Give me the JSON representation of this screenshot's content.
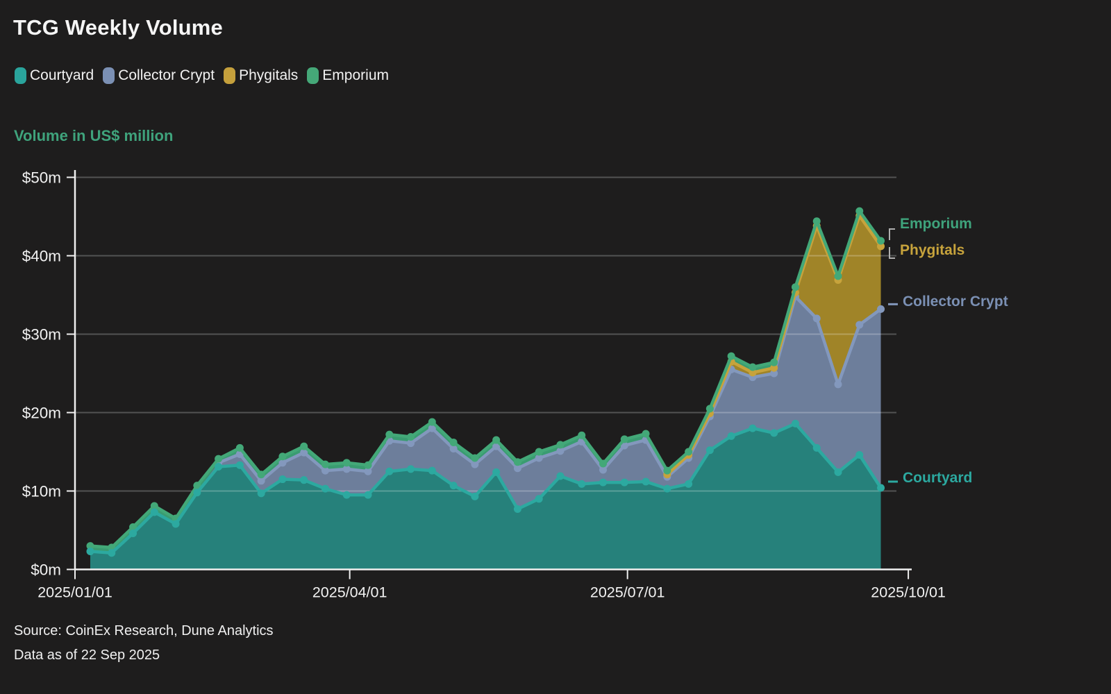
{
  "title": "TCG Weekly Volume",
  "subtitle": "Volume in US$ million",
  "subtitle_color": "#3fa37c",
  "source": {
    "line1": "Source: CoinEx Research, Dune Analytics",
    "line2": "Data as of 22 Sep 2025"
  },
  "legend": {
    "items": [
      {
        "label": "Courtyard",
        "color": "#2aa49c"
      },
      {
        "label": "Collector Crypt",
        "color": "#7b90b4"
      },
      {
        "label": "Phygitals",
        "color": "#c5a03c"
      },
      {
        "label": "Emporium",
        "color": "#45a878"
      }
    ]
  },
  "right_labels": {
    "emporium": {
      "label": "Emporium",
      "color": "#3fa37c"
    },
    "phygitals": {
      "label": "Phygitals",
      "color": "#c7a33c"
    },
    "collector": {
      "label": "Collector Crypt",
      "color": "#7b90b4"
    },
    "courtyard": {
      "label": "Courtyard",
      "color": "#2ca9a0"
    }
  },
  "chart_data": {
    "type": "area",
    "stacked": true,
    "title": "TCG Weekly Volume",
    "ylabel": "Volume in US$ million",
    "ylim": [
      0,
      50
    ],
    "grid": true,
    "x": [
      "2025/01/06",
      "2025/01/13",
      "2025/01/20",
      "2025/01/27",
      "2025/02/03",
      "2025/02/10",
      "2025/02/17",
      "2025/02/24",
      "2025/03/03",
      "2025/03/10",
      "2025/03/17",
      "2025/03/24",
      "2025/03/31",
      "2025/04/07",
      "2025/04/14",
      "2025/04/21",
      "2025/04/28",
      "2025/05/05",
      "2025/05/12",
      "2025/05/19",
      "2025/05/26",
      "2025/06/02",
      "2025/06/09",
      "2025/06/16",
      "2025/06/23",
      "2025/06/30",
      "2025/07/07",
      "2025/07/14",
      "2025/07/21",
      "2025/07/28",
      "2025/08/04",
      "2025/08/11",
      "2025/08/18",
      "2025/08/25",
      "2025/09/01",
      "2025/09/08",
      "2025/09/15",
      "2025/09/22"
    ],
    "series": [
      {
        "name": "Courtyard",
        "color": "#2ca9a0",
        "fill": "#26817b",
        "line_from": 0,
        "values": [
          2.3,
          2.1,
          4.6,
          7.3,
          5.8,
          9.8,
          13.1,
          13.3,
          9.7,
          11.5,
          11.4,
          10.3,
          9.5,
          9.5,
          12.5,
          12.8,
          12.6,
          10.7,
          9.3,
          12.4,
          7.7,
          9.0,
          11.9,
          10.9,
          11.1,
          11.1,
          11.2,
          10.3,
          10.9,
          15.2,
          17.0,
          18.0,
          17.4,
          18.6,
          15.5,
          12.4,
          14.6,
          10.4
        ]
      },
      {
        "name": "Collector Crypt",
        "color": "#8398bd",
        "fill": "#6d7e9b",
        "line_from": 6,
        "values": [
          0,
          0,
          0,
          0,
          0.2,
          0.2,
          0.5,
          1.4,
          1.6,
          2.1,
          3.5,
          2.3,
          3.3,
          3.0,
          3.9,
          3.3,
          5.4,
          4.7,
          4.1,
          3.3,
          5.2,
          5.2,
          3.2,
          5.4,
          1.6,
          4.7,
          5.3,
          1.5,
          3.3,
          4.3,
          8.5,
          6.5,
          7.6,
          16.2,
          16.5,
          11.2,
          16.6,
          22.8
        ]
      },
      {
        "name": "Phygitals",
        "color": "#c7a33c",
        "fill": "#a08428",
        "line_from": 27,
        "values": [
          0,
          0,
          0,
          0,
          0,
          0,
          0,
          0,
          0,
          0,
          0,
          0,
          0,
          0,
          0,
          0,
          0,
          0,
          0,
          0,
          0,
          0,
          0,
          0,
          0,
          0,
          0,
          0.3,
          0.4,
          0.4,
          1.0,
          0.6,
          0.7,
          0.5,
          11.8,
          13.3,
          13.9,
          8.0
        ]
      },
      {
        "name": "Emporium",
        "color": "#43a878",
        "fill": "#3a9c71",
        "line_from": 0,
        "values": [
          0.7,
          0.7,
          0.8,
          0.8,
          0.5,
          0.7,
          0.5,
          0.8,
          0.8,
          0.8,
          0.8,
          0.8,
          0.8,
          0.8,
          0.8,
          0.8,
          0.8,
          0.8,
          0.8,
          0.8,
          0.8,
          0.8,
          0.8,
          0.8,
          0.8,
          0.8,
          0.8,
          0.5,
          0.4,
          0.6,
          0.7,
          0.7,
          0.7,
          0.7,
          0.6,
          0.5,
          0.6,
          0.7
        ]
      }
    ],
    "yticks": [
      0,
      10,
      20,
      30,
      40,
      50
    ],
    "ytick_labels": [
      "$0m",
      "$10m",
      "$20m",
      "$30m",
      "$40m",
      "$50m"
    ],
    "xticks": [
      {
        "label": "2025/01/01",
        "date": "2025/01/01"
      },
      {
        "label": "2025/04/01",
        "date": "2025/04/01"
      },
      {
        "label": "2025/07/01",
        "date": "2025/07/01"
      },
      {
        "label": "2025/10/01",
        "date": "2025/10/01"
      }
    ],
    "legend_position": "top"
  }
}
